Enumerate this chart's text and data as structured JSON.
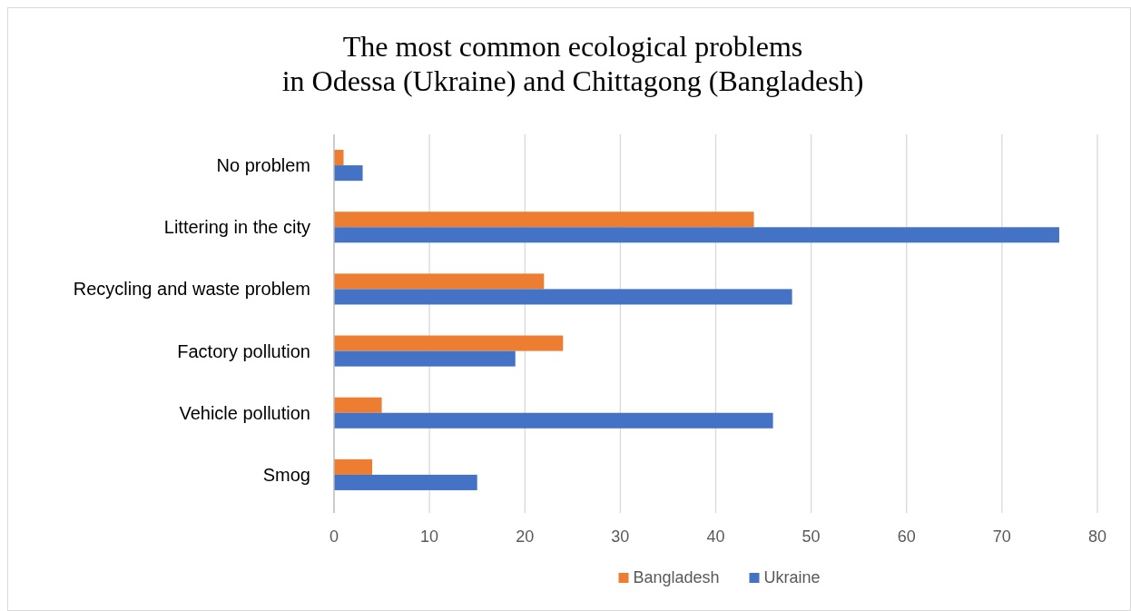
{
  "chart_data": {
    "type": "bar",
    "orientation": "horizontal",
    "title": "The most common ecological problems\nin Odessa (Ukraine) and Chittagong (Bangladesh)",
    "categories": [
      "No problem",
      "Littering in the city",
      "Recycling and waste problem",
      "Factory pollution",
      "Vehicle pollution",
      "Smog"
    ],
    "series": [
      {
        "name": "Bangladesh",
        "color": "#ed7d31",
        "values": [
          1,
          44,
          22,
          24,
          5,
          4
        ]
      },
      {
        "name": "Ukraine",
        "color": "#4472c4",
        "values": [
          3,
          76,
          48,
          19,
          46,
          15
        ]
      }
    ],
    "xlim": [
      0,
      80
    ],
    "xticks": [
      0,
      10,
      20,
      30,
      40,
      50,
      60,
      70,
      80
    ],
    "grid": "x",
    "legend": "bottom"
  }
}
